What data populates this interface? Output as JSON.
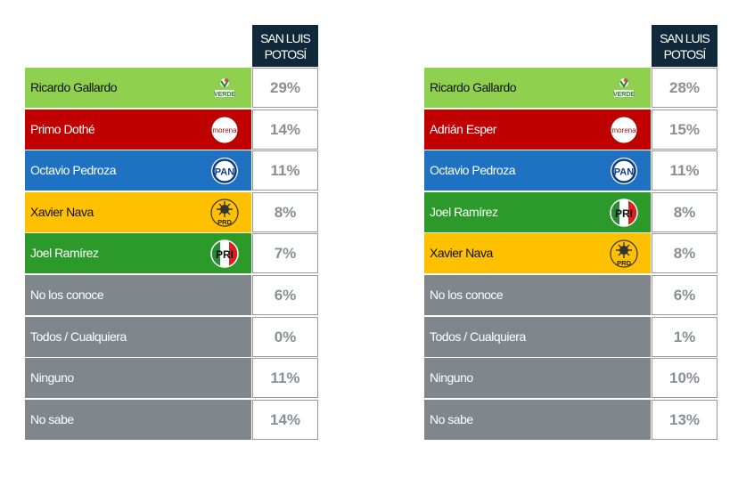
{
  "chart_data": [
    {
      "type": "table",
      "column_header": "SAN LUIS POTOSÍ",
      "rows": [
        {
          "label": "Ricardo Gallardo",
          "party": "VERDE",
          "value": "29%",
          "color": "#8fd14f"
        },
        {
          "label": "Primo Dothé",
          "party": "morena",
          "value": "14%",
          "color": "#c00000"
        },
        {
          "label": "Octavio Pedroza",
          "party": "PAN",
          "value": "11%",
          "color": "#1f72c2"
        },
        {
          "label": "Xavier Nava",
          "party": "PRD",
          "value": "8%",
          "color": "#ffc000"
        },
        {
          "label": "Joel Ramírez",
          "party": "PRI",
          "value": "7%",
          "color": "#2b9a2b"
        },
        {
          "label": "No los conoce",
          "party": "",
          "value": "6%",
          "color": "#7f868c"
        },
        {
          "label": "Todos / Cualquiera",
          "party": "",
          "value": "0%",
          "color": "#7f868c"
        },
        {
          "label": "Ninguno",
          "party": "",
          "value": "11%",
          "color": "#7f868c"
        },
        {
          "label": "No sabe",
          "party": "",
          "value": "14%",
          "color": "#7f868c"
        }
      ]
    },
    {
      "type": "table",
      "column_header": "SAN LUIS POTOSÍ",
      "rows": [
        {
          "label": "Ricardo Gallardo",
          "party": "VERDE",
          "value": "28%",
          "color": "#8fd14f"
        },
        {
          "label": "Adrián Esper",
          "party": "morena",
          "value": "15%",
          "color": "#c00000"
        },
        {
          "label": "Octavio Pedroza",
          "party": "PAN",
          "value": "11%",
          "color": "#1f72c2"
        },
        {
          "label": "Joel Ramírez",
          "party": "PRI",
          "value": "8%",
          "color": "#2b9a2b"
        },
        {
          "label": "Xavier Nava",
          "party": "PRD",
          "value": "8%",
          "color": "#ffc000"
        },
        {
          "label": "No los conoce",
          "party": "",
          "value": "6%",
          "color": "#7f868c"
        },
        {
          "label": "Todos / Cualquiera",
          "party": "",
          "value": "1%",
          "color": "#7f868c"
        },
        {
          "label": "Ninguno",
          "party": "",
          "value": "10%",
          "color": "#7f868c"
        },
        {
          "label": "No sabe",
          "party": "",
          "value": "13%",
          "color": "#7f868c"
        }
      ]
    }
  ]
}
